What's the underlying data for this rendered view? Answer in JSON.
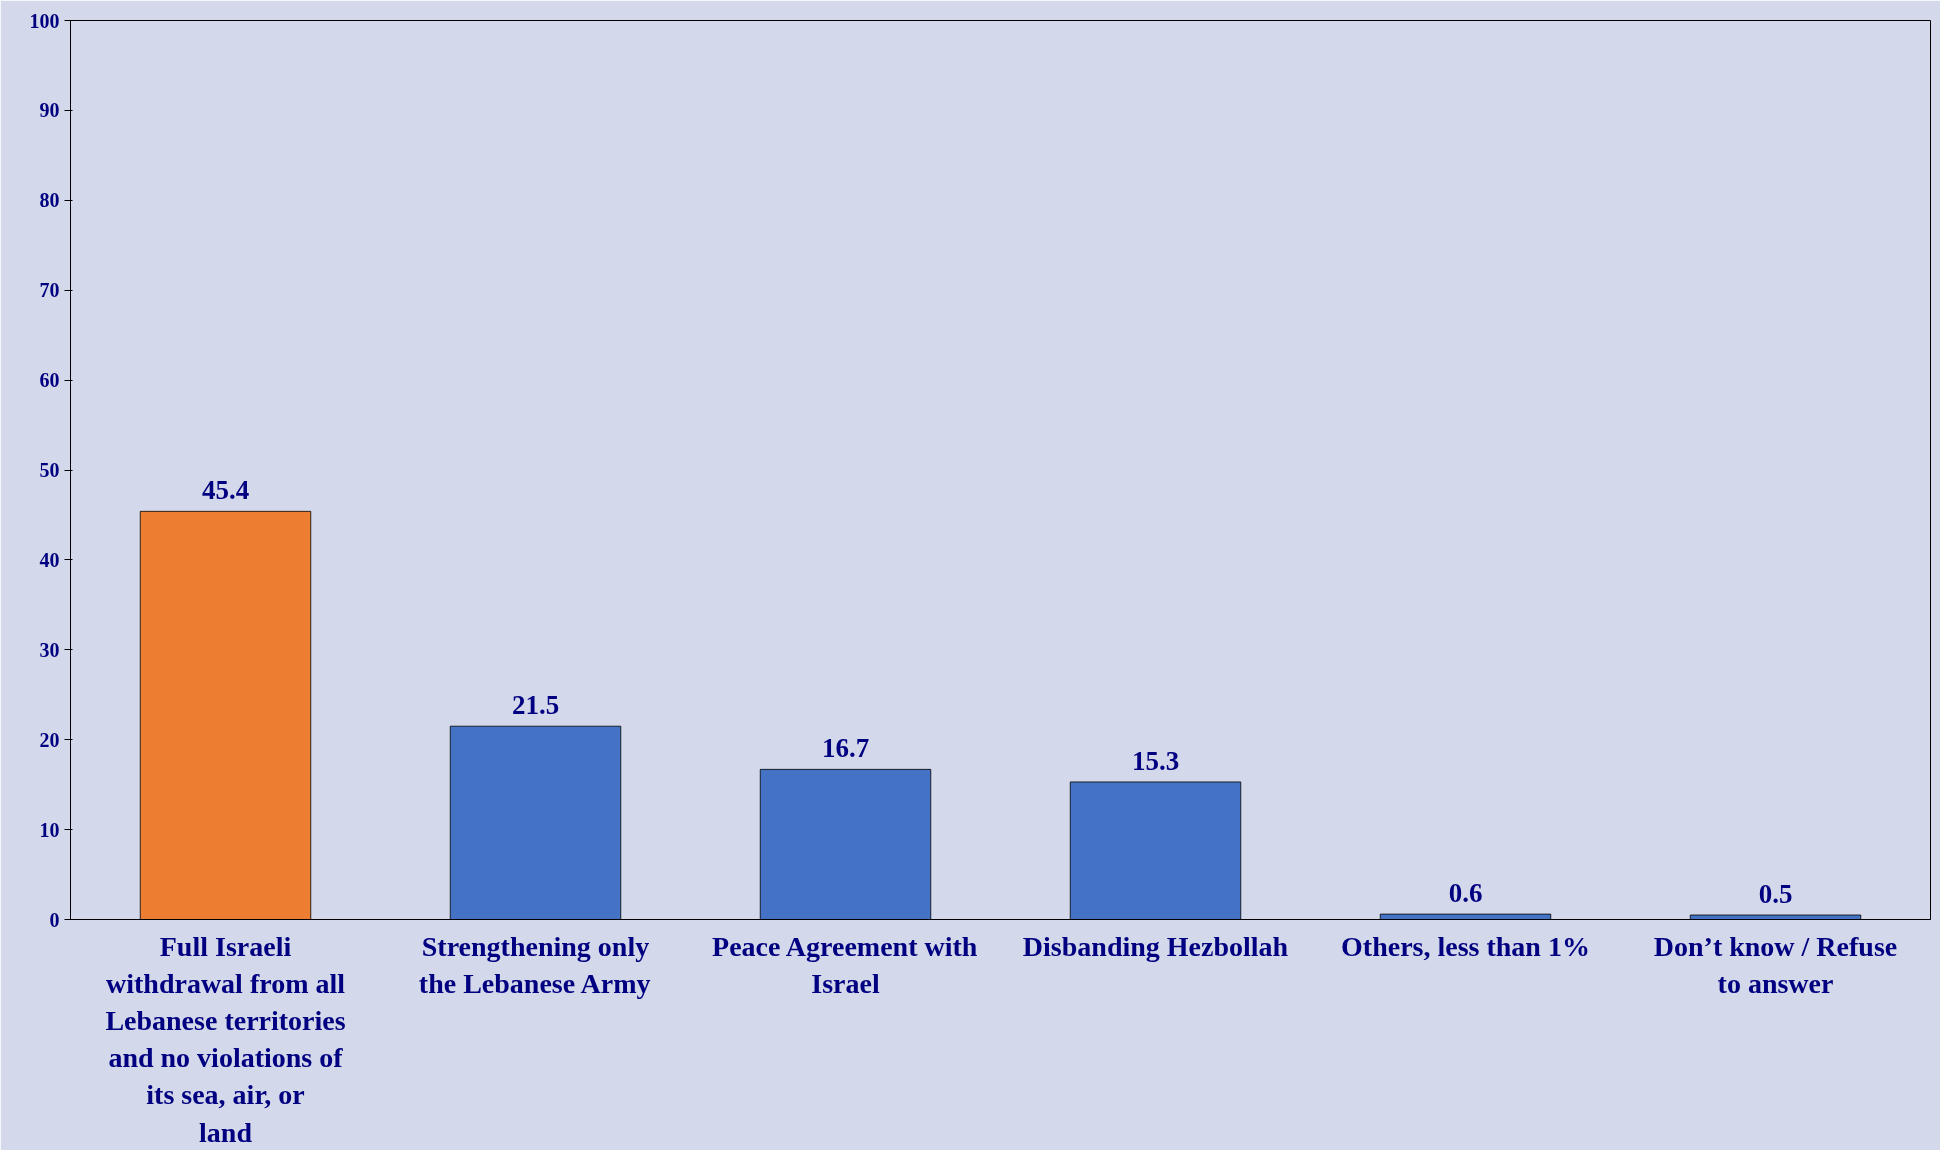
{
  "chart_data": {
    "type": "bar",
    "categories": [
      "Full Israeli withdrawal from all Lebanese territories and no violations of its sea, air, or land",
      "Strengthening only the Lebanese Army",
      "Peace Agreement with Israel",
      "Disbanding Hezbollah",
      "Others, less than 1%",
      "Don’t know / Refuse to answer"
    ],
    "values": [
      45.4,
      21.5,
      16.7,
      15.3,
      0.6,
      0.5
    ],
    "colors": [
      "#ed7d31",
      "#4472c4",
      "#4472c4",
      "#4472c4",
      "#4472c4",
      "#4472c4"
    ],
    "ylim": [
      0,
      100
    ],
    "yticks": [
      0,
      10,
      20,
      30,
      40,
      50,
      60,
      70,
      80,
      90,
      100
    ],
    "data_labels": true,
    "grid": false
  }
}
